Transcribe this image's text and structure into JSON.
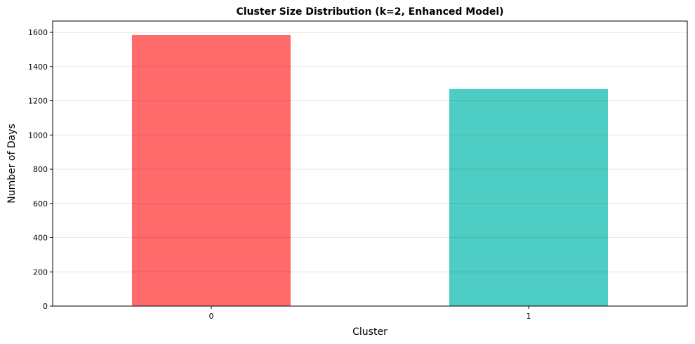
{
  "chart_data": {
    "type": "bar",
    "title": "Cluster Size Distribution (k=2, Enhanced Model)",
    "xlabel": "Cluster",
    "ylabel": "Number of Days",
    "categories": [
      "0",
      "1"
    ],
    "values": [
      1584,
      1269
    ],
    "colors": [
      "#FF6B6B",
      "#4ECDC4"
    ],
    "ylim": [
      0,
      1666
    ],
    "yticks": [
      0,
      200,
      400,
      600,
      800,
      1000,
      1200,
      1400,
      1600
    ],
    "grid": "y",
    "legend": "none"
  }
}
